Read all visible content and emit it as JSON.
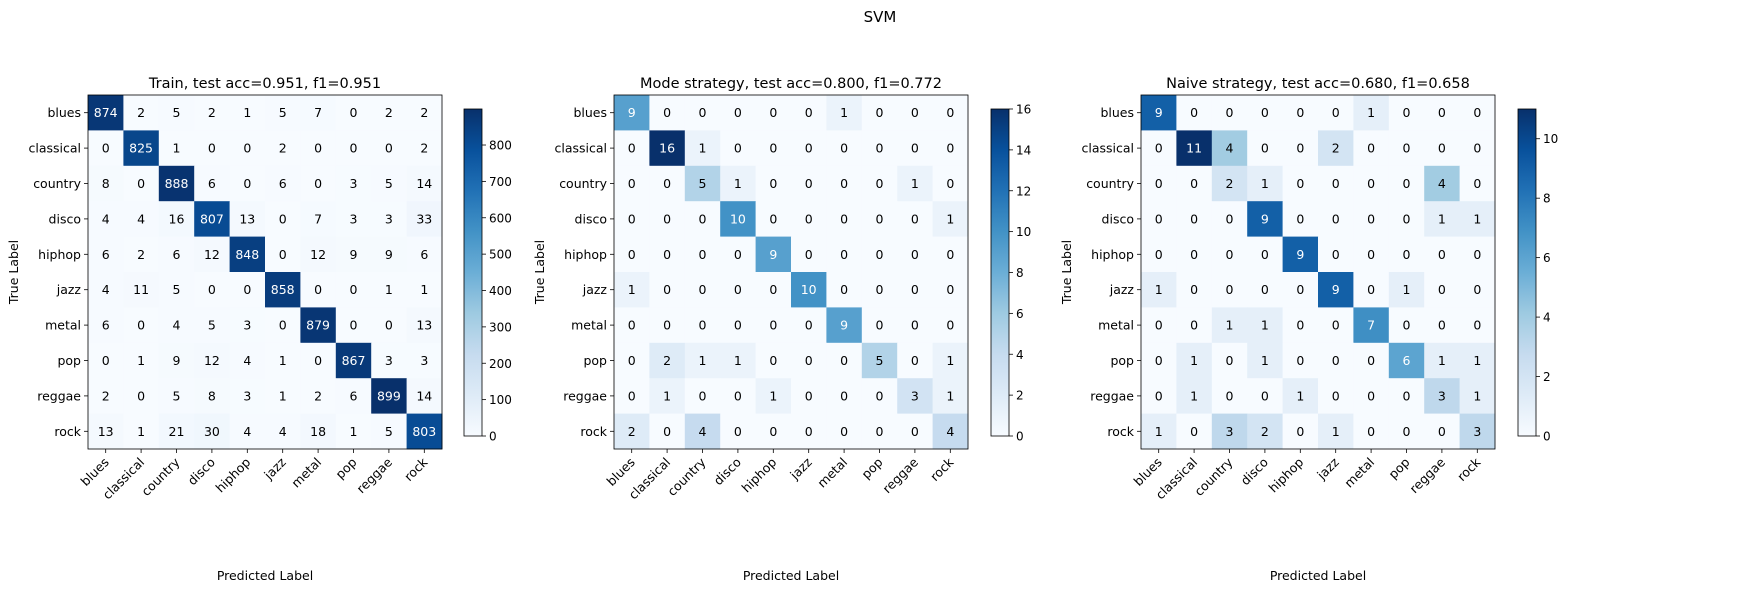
{
  "suptitle": "SVM",
  "chart_data": [
    {
      "type": "heatmap",
      "title": "Train, test acc=0.951, f1=0.951",
      "xlabel": "Predicted Label",
      "ylabel": "True Label",
      "x_categories": [
        "blues",
        "classical",
        "country",
        "disco",
        "hiphop",
        "jazz",
        "metal",
        "pop",
        "reggae",
        "rock"
      ],
      "y_categories": [
        "blues",
        "classical",
        "country",
        "disco",
        "hiphop",
        "jazz",
        "metal",
        "pop",
        "reggae",
        "rock"
      ],
      "matrix": [
        [
          874,
          2,
          5,
          2,
          1,
          5,
          7,
          0,
          2,
          2
        ],
        [
          0,
          825,
          1,
          0,
          0,
          2,
          0,
          0,
          0,
          2
        ],
        [
          8,
          0,
          888,
          6,
          0,
          6,
          0,
          3,
          5,
          14
        ],
        [
          4,
          4,
          16,
          807,
          13,
          0,
          7,
          3,
          3,
          33
        ],
        [
          6,
          2,
          6,
          12,
          848,
          0,
          12,
          9,
          9,
          6
        ],
        [
          4,
          11,
          5,
          0,
          0,
          858,
          0,
          0,
          1,
          1
        ],
        [
          6,
          0,
          4,
          5,
          3,
          0,
          879,
          0,
          0,
          13
        ],
        [
          0,
          1,
          9,
          12,
          4,
          1,
          0,
          867,
          3,
          3
        ],
        [
          2,
          0,
          5,
          8,
          3,
          1,
          2,
          6,
          899,
          14
        ],
        [
          13,
          1,
          21,
          30,
          4,
          4,
          18,
          1,
          5,
          803
        ]
      ],
      "colorbar": {
        "vmin": 0,
        "vmax": 899,
        "ticks": [
          0,
          100,
          200,
          300,
          400,
          500,
          600,
          700,
          800
        ]
      },
      "colormap": "Blues"
    },
    {
      "type": "heatmap",
      "title": "Mode strategy, test acc=0.800, f1=0.772",
      "xlabel": "Predicted Label",
      "ylabel": "True Label",
      "x_categories": [
        "blues",
        "classical",
        "country",
        "disco",
        "hiphop",
        "jazz",
        "metal",
        "pop",
        "reggae",
        "rock"
      ],
      "y_categories": [
        "blues",
        "classical",
        "country",
        "disco",
        "hiphop",
        "jazz",
        "metal",
        "pop",
        "reggae",
        "rock"
      ],
      "matrix": [
        [
          9,
          0,
          0,
          0,
          0,
          0,
          1,
          0,
          0,
          0
        ],
        [
          0,
          16,
          1,
          0,
          0,
          0,
          0,
          0,
          0,
          0
        ],
        [
          0,
          0,
          5,
          1,
          0,
          0,
          0,
          0,
          1,
          0
        ],
        [
          0,
          0,
          0,
          10,
          0,
          0,
          0,
          0,
          0,
          1
        ],
        [
          0,
          0,
          0,
          0,
          9,
          0,
          0,
          0,
          0,
          0
        ],
        [
          1,
          0,
          0,
          0,
          0,
          10,
          0,
          0,
          0,
          0
        ],
        [
          0,
          0,
          0,
          0,
          0,
          0,
          9,
          0,
          0,
          0
        ],
        [
          0,
          2,
          1,
          1,
          0,
          0,
          0,
          5,
          0,
          1
        ],
        [
          0,
          1,
          0,
          0,
          1,
          0,
          0,
          0,
          3,
          1
        ],
        [
          2,
          0,
          4,
          0,
          0,
          0,
          0,
          0,
          0,
          4
        ]
      ],
      "colorbar": {
        "vmin": 0,
        "vmax": 16,
        "ticks": [
          0,
          2,
          4,
          6,
          8,
          10,
          12,
          14,
          16
        ]
      },
      "colormap": "Blues"
    },
    {
      "type": "heatmap",
      "title": "Naive strategy, test acc=0.680, f1=0.658",
      "xlabel": "Predicted Label",
      "ylabel": "True Label",
      "x_categories": [
        "blues",
        "classical",
        "country",
        "disco",
        "hiphop",
        "jazz",
        "metal",
        "pop",
        "reggae",
        "rock"
      ],
      "y_categories": [
        "blues",
        "classical",
        "country",
        "disco",
        "hiphop",
        "jazz",
        "metal",
        "pop",
        "reggae",
        "rock"
      ],
      "matrix": [
        [
          9,
          0,
          0,
          0,
          0,
          0,
          1,
          0,
          0,
          0
        ],
        [
          0,
          11,
          4,
          0,
          0,
          2,
          0,
          0,
          0,
          0
        ],
        [
          0,
          0,
          2,
          1,
          0,
          0,
          0,
          0,
          4,
          0
        ],
        [
          0,
          0,
          0,
          9,
          0,
          0,
          0,
          0,
          1,
          1
        ],
        [
          0,
          0,
          0,
          0,
          9,
          0,
          0,
          0,
          0,
          0
        ],
        [
          1,
          0,
          0,
          0,
          0,
          9,
          0,
          1,
          0,
          0
        ],
        [
          0,
          0,
          1,
          1,
          0,
          0,
          7,
          0,
          0,
          0
        ],
        [
          0,
          1,
          0,
          1,
          0,
          0,
          0,
          6,
          1,
          1
        ],
        [
          0,
          1,
          0,
          0,
          1,
          0,
          0,
          0,
          3,
          1
        ],
        [
          1,
          0,
          3,
          2,
          0,
          1,
          0,
          0,
          0,
          3
        ]
      ],
      "colorbar": {
        "vmin": 0,
        "vmax": 11,
        "ticks": [
          0,
          2,
          4,
          6,
          8,
          10
        ]
      },
      "colormap": "Blues"
    }
  ]
}
